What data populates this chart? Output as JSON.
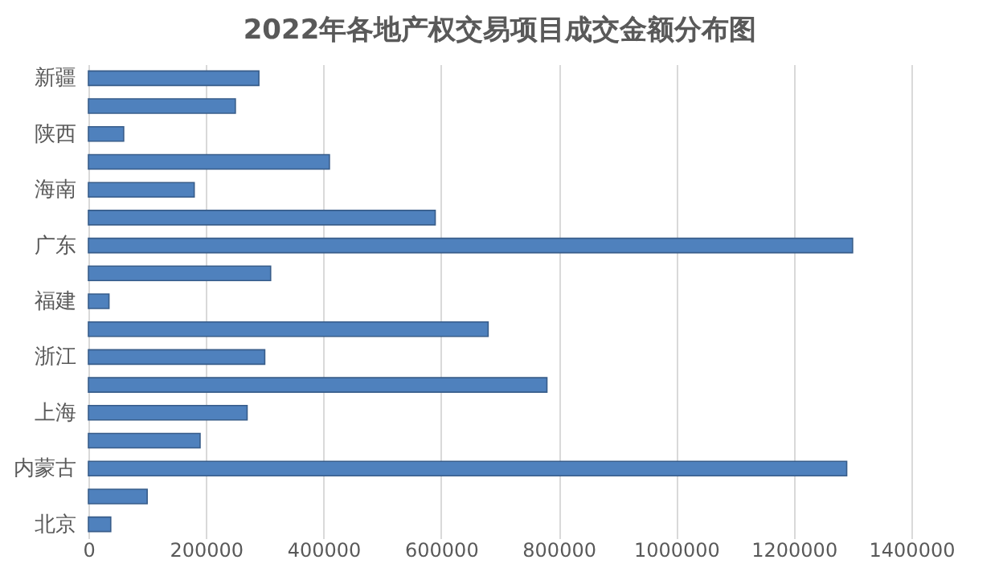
{
  "chart_data": {
    "type": "bar",
    "orientation": "horizontal",
    "title": "2022年各地产权交易项目成交金额分布图",
    "categories": [
      "新疆",
      null,
      "陕西",
      null,
      "海南",
      null,
      "广东",
      null,
      "福建",
      null,
      "浙江",
      null,
      "上海",
      null,
      "内蒙古",
      null,
      "北京"
    ],
    "values": [
      290000,
      250000,
      60000,
      410000,
      180000,
      590000,
      1300000,
      310000,
      35000,
      680000,
      300000,
      780000,
      270000,
      190000,
      1290000,
      100000,
      38000
    ],
    "color": "#4f81bd",
    "xlim": [
      0,
      1400000
    ],
    "xticks": [
      0,
      200000,
      400000,
      600000,
      800000,
      1000000,
      1200000,
      1400000
    ],
    "grid": "x"
  }
}
